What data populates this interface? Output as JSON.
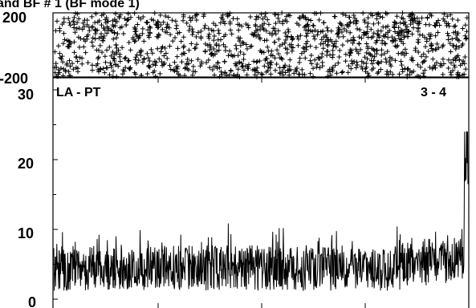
{
  "title": "and BF # 1 (BF mode 1)",
  "chart_data": [
    {
      "type": "scatter",
      "ylim": [
        -200,
        200
      ],
      "y_ticks": [
        "200",
        "-200"
      ],
      "marker": "plus",
      "color": "#000000",
      "grid": false,
      "pattern": "dense plus markers filling the full phase range -200..200 across the whole x range"
    },
    {
      "type": "line",
      "ylim": [
        0,
        30
      ],
      "y_ticks": [
        "0",
        "10",
        "20",
        "30"
      ],
      "left_label": "LA - PT",
      "right_label": "3 - 4",
      "color": "#000000",
      "grid": false,
      "pattern": "noisy amplitude mostly between 1 and 9, occasional peaks near 12, rising near the right edge to about 24"
    }
  ]
}
